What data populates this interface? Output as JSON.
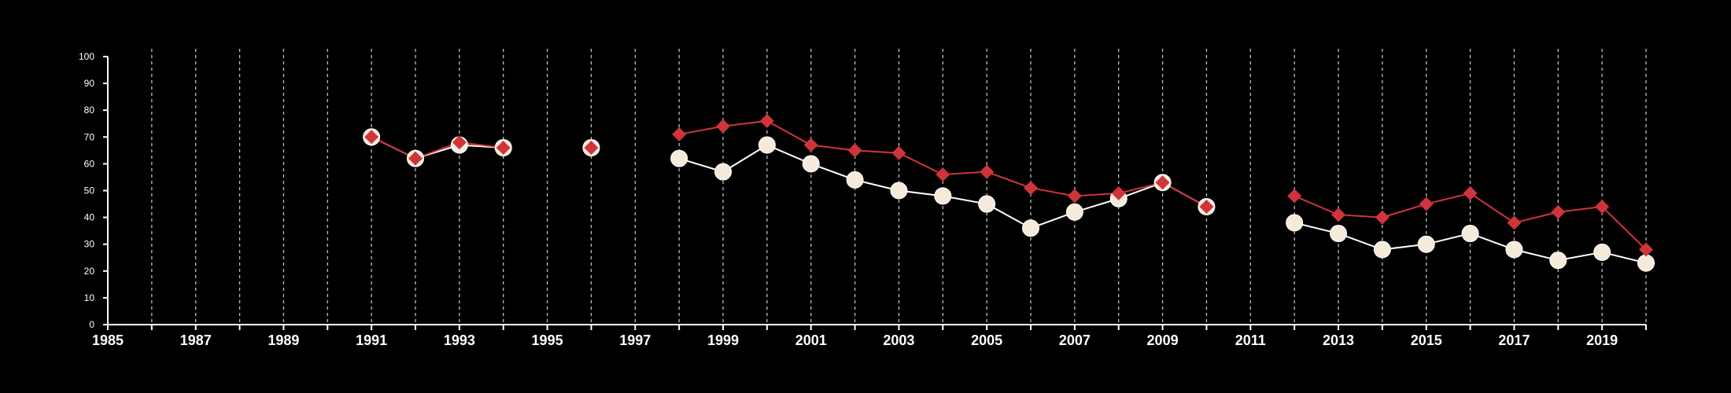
{
  "chart_data": {
    "type": "line",
    "title": "",
    "xlabel": "",
    "ylabel": "",
    "xlim": [
      1985,
      2020
    ],
    "ylim": [
      0,
      100
    ],
    "x_ticks": [
      1985,
      1987,
      1989,
      1991,
      1993,
      1995,
      1997,
      1999,
      2001,
      2003,
      2005,
      2007,
      2009,
      2011,
      2013,
      2015,
      2017,
      2019
    ],
    "y_ticks": [
      0,
      10,
      20,
      30,
      40,
      50,
      60,
      70,
      80,
      90,
      100
    ],
    "grid": "vertical dashed lines at every year",
    "legend": "none",
    "background": "#000000",
    "axis_color": "#ffffff",
    "series": [
      {
        "marker": "circle",
        "color": "#ffffff",
        "marker_fill": "#f6eadb",
        "points": [
          [
            1991,
            70
          ],
          [
            1992,
            62
          ],
          [
            1993,
            67
          ],
          [
            1994,
            66
          ],
          [
            1996,
            66
          ],
          [
            1998,
            62
          ],
          [
            1999,
            57
          ],
          [
            2000,
            67
          ],
          [
            2001,
            60
          ],
          [
            2002,
            54
          ],
          [
            2003,
            50
          ],
          [
            2004,
            48
          ],
          [
            2005,
            45
          ],
          [
            2006,
            36
          ],
          [
            2007,
            42
          ],
          [
            2008,
            47
          ],
          [
            2009,
            53
          ],
          [
            2010,
            44
          ],
          [
            2012,
            38
          ],
          [
            2013,
            34
          ],
          [
            2014,
            28
          ],
          [
            2015,
            30
          ],
          [
            2016,
            34
          ],
          [
            2017,
            28
          ],
          [
            2018,
            24
          ],
          [
            2019,
            27
          ],
          [
            2020,
            23
          ]
        ]
      },
      {
        "marker": "diamond",
        "color": "#d0343b",
        "marker_fill": "#d0343b",
        "points": [
          [
            1991,
            70
          ],
          [
            1992,
            62
          ],
          [
            1993,
            68
          ],
          [
            1994,
            66
          ],
          [
            1996,
            66
          ],
          [
            1998,
            71
          ],
          [
            1999,
            74
          ],
          [
            2000,
            76
          ],
          [
            2001,
            67
          ],
          [
            2002,
            65
          ],
          [
            2003,
            64
          ],
          [
            2004,
            56
          ],
          [
            2005,
            57
          ],
          [
            2006,
            51
          ],
          [
            2007,
            48
          ],
          [
            2008,
            49
          ],
          [
            2009,
            53
          ],
          [
            2010,
            44
          ],
          [
            2012,
            48
          ],
          [
            2013,
            41
          ],
          [
            2014,
            40
          ],
          [
            2015,
            45
          ],
          [
            2016,
            49
          ],
          [
            2017,
            38
          ],
          [
            2018,
            42
          ],
          [
            2019,
            44
          ],
          [
            2020,
            28
          ]
        ]
      }
    ]
  }
}
